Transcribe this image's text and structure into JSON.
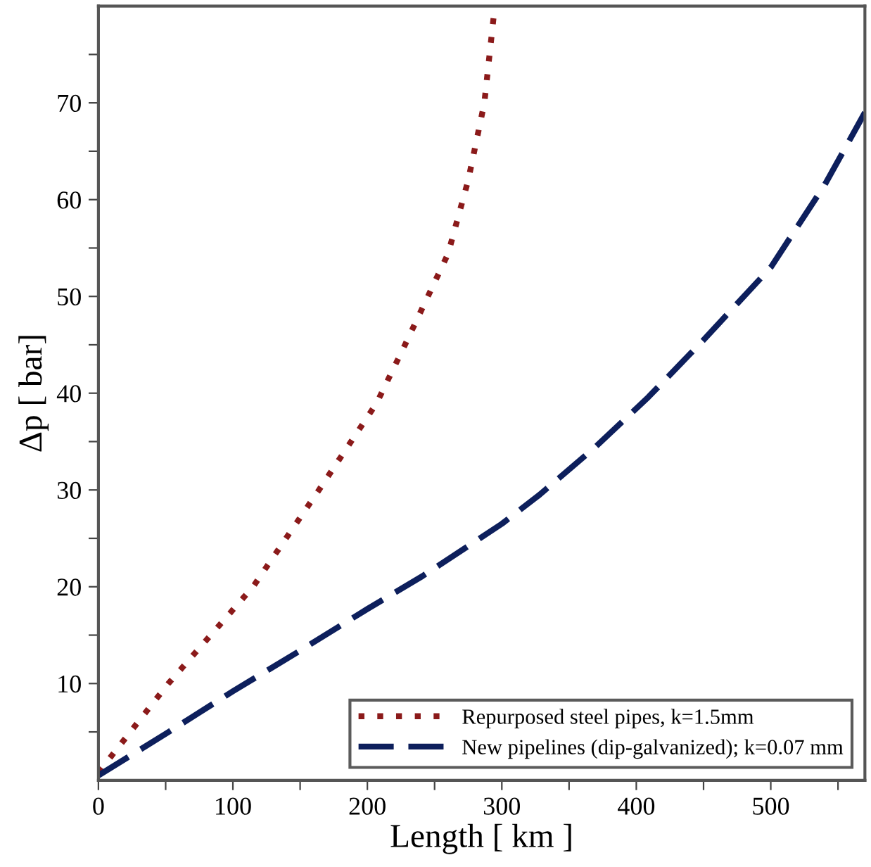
{
  "chart_data": {
    "type": "line",
    "xlabel": "Length [ km ]",
    "ylabel": "Δp [ bar]",
    "xlim": [
      0,
      570
    ],
    "ylim": [
      0,
      80
    ],
    "xticks": [
      0,
      {
        "value": 50,
        "label": null
      },
      100,
      {
        "value": 150,
        "label": null
      },
      200,
      {
        "value": 250,
        "label": null
      },
      300,
      {
        "value": 350,
        "label": null
      },
      400,
      {
        "value": 450,
        "label": null
      },
      500,
      {
        "value": 550,
        "label": null
      }
    ],
    "yticks": [
      {
        "value": 5,
        "label": null
      },
      10,
      {
        "value": 15,
        "label": null
      },
      20,
      {
        "value": 25,
        "label": null
      },
      30,
      {
        "value": 35,
        "label": null
      },
      40,
      {
        "value": 45,
        "label": null
      },
      50,
      {
        "value": 55,
        "label": null
      },
      60,
      {
        "value": 65,
        "label": null
      },
      70,
      {
        "value": 75,
        "label": null
      }
    ],
    "grid": false,
    "legend": "bottom right",
    "marker": "none",
    "series": [
      {
        "name": "Repurposed steel pipes, k=1.5mm",
        "color": "#8b1a1a",
        "line_style": "dotted",
        "x": [
          0,
          52,
          115,
          164,
          207,
          228,
          260,
          275,
          287,
          294
        ],
        "values": [
          0.8,
          10,
          20,
          30,
          39,
          45,
          54.4,
          62,
          70,
          79
        ]
      },
      {
        "name": "New pipelines (dip-galvanized); k=0.07 mm",
        "color": "#0d1f5c",
        "line_style": "dashed",
        "x": [
          0,
          50,
          100,
          150,
          200,
          241,
          300,
          328,
          370,
          409,
          450,
          500,
          540,
          570
        ],
        "values": [
          0.5,
          4.8,
          9.2,
          13.4,
          17.7,
          21.1,
          26.5,
          29.5,
          34.5,
          39.6,
          45.5,
          53,
          61.5,
          69
        ]
      }
    ]
  }
}
